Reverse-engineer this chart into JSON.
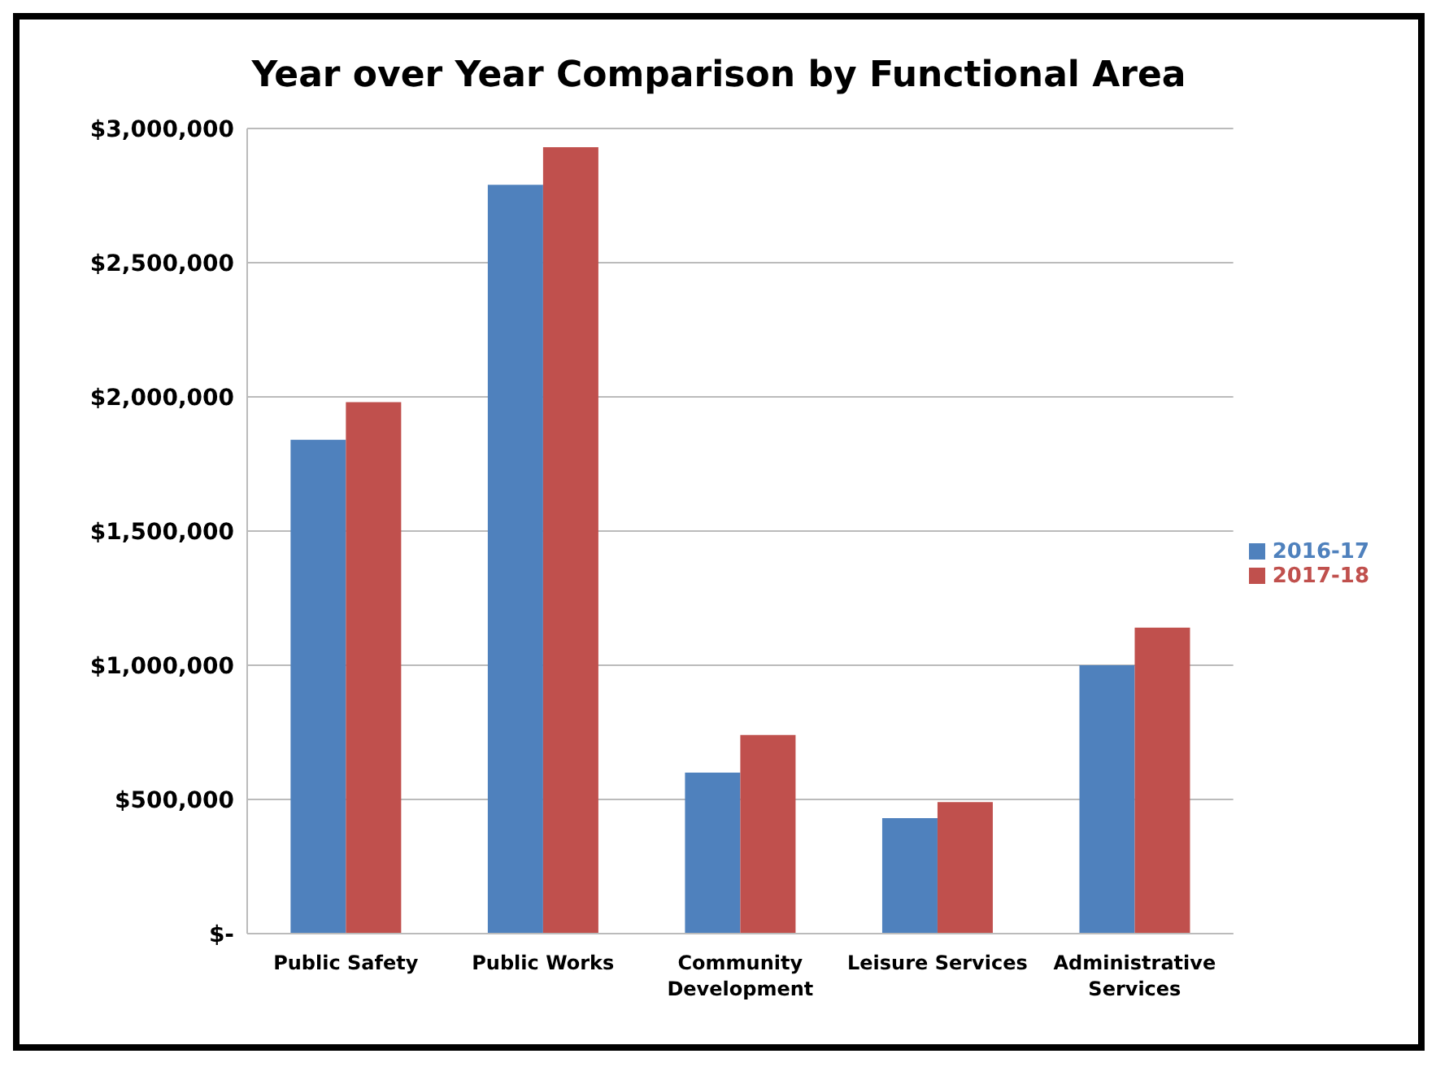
{
  "chart_data": {
    "type": "bar",
    "title": "Year over Year Comparison by Functional Area",
    "categories": [
      "Public Safety",
      "Public Works",
      "Community Development",
      "Leisure Services",
      "Administrative Services"
    ],
    "series": [
      {
        "name": "2016-17",
        "color": "#4f81bd",
        "values": [
          1840000,
          2790000,
          600000,
          430000,
          1000000
        ]
      },
      {
        "name": "2017-18",
        "color": "#c0504d",
        "values": [
          1980000,
          2930000,
          740000,
          490000,
          1140000
        ]
      }
    ],
    "ylim": [
      0,
      3000000
    ],
    "yticks": [
      {
        "value": 0,
        "label": "$-"
      },
      {
        "value": 500000,
        "label": "$500,000"
      },
      {
        "value": 1000000,
        "label": "$1,000,000"
      },
      {
        "value": 1500000,
        "label": "$1,500,000"
      },
      {
        "value": 2000000,
        "label": "$2,000,000"
      },
      {
        "value": 2500000,
        "label": "$2,500,000"
      },
      {
        "value": 3000000,
        "label": "$3,000,000"
      }
    ],
    "grid": "y",
    "legend": "right"
  }
}
